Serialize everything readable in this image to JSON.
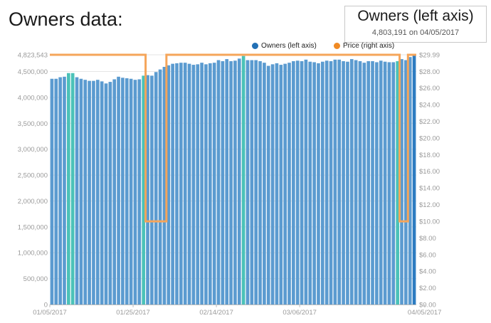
{
  "page": {
    "title": "Owners data:"
  },
  "tooltip": {
    "title": "Owners (left axis)",
    "value_text": "4,803,191 on 04/05/2017"
  },
  "colors": {
    "bar": "#5b9bd0",
    "bar_highlight": "#4bc2b8",
    "bar_last": "#2d7cc1",
    "price_line": "#f5a55a",
    "legend_owners": "#2270b5",
    "legend_price": "#f08a24",
    "grid": "#e6e6e6"
  },
  "chart_data": {
    "type": "bar",
    "legend": [
      {
        "name": "Owners (left axis)",
        "color": "#2270b5"
      },
      {
        "name": "Price (right axis)",
        "color": "#f08a24"
      }
    ],
    "left_axis": {
      "min": 0,
      "max": 4823543,
      "ticks": [
        {
          "value": 0,
          "label": "0"
        },
        {
          "value": 500000,
          "label": "500,000"
        },
        {
          "value": 1000000,
          "label": "1,000,000"
        },
        {
          "value": 1500000,
          "label": "1,500,000"
        },
        {
          "value": 2000000,
          "label": "2,000,000"
        },
        {
          "value": 2500000,
          "label": "2,500,000"
        },
        {
          "value": 3000000,
          "label": "3,000,000"
        },
        {
          "value": 3500000,
          "label": "3,500,000"
        },
        {
          "value": 4000000,
          "label": "4,000,000"
        },
        {
          "value": 4500000,
          "label": "4,500,000"
        },
        {
          "value": 4823543,
          "label": "4,823,543"
        }
      ]
    },
    "right_axis": {
      "min": 0,
      "max": 29.99,
      "ticks": [
        {
          "value": 0,
          "label": "$0.00"
        },
        {
          "value": 2,
          "label": "$2.00"
        },
        {
          "value": 4,
          "label": "$4.00"
        },
        {
          "value": 6,
          "label": "$6.00"
        },
        {
          "value": 8,
          "label": "$8.00"
        },
        {
          "value": 10,
          "label": "$10.00"
        },
        {
          "value": 12,
          "label": "$12.00"
        },
        {
          "value": 14,
          "label": "$14.00"
        },
        {
          "value": 16,
          "label": "$16.00"
        },
        {
          "value": 18,
          "label": "$18.00"
        },
        {
          "value": 20,
          "label": "$20.00"
        },
        {
          "value": 22,
          "label": "$22.00"
        },
        {
          "value": 24,
          "label": "$24.00"
        },
        {
          "value": 26,
          "label": "$26.00"
        },
        {
          "value": 28,
          "label": "$28.00"
        },
        {
          "value": 29.99,
          "label": "$29.99"
        }
      ]
    },
    "x_ticks": [
      {
        "index": 0,
        "label": "01/05/2017"
      },
      {
        "index": 20,
        "label": "01/25/2017"
      },
      {
        "index": 40,
        "label": "02/14/2017"
      },
      {
        "index": 60,
        "label": "03/06/2017"
      },
      {
        "index": 90,
        "label": "04/05/2017"
      }
    ],
    "owners": [
      4360000,
      4360000,
      4390000,
      4400000,
      4470000,
      4470000,
      4390000,
      4360000,
      4340000,
      4320000,
      4320000,
      4340000,
      4310000,
      4270000,
      4300000,
      4350000,
      4400000,
      4380000,
      4370000,
      4360000,
      4340000,
      4350000,
      4420000,
      4430000,
      4420000,
      4490000,
      4540000,
      4590000,
      4620000,
      4650000,
      4660000,
      4670000,
      4670000,
      4650000,
      4630000,
      4640000,
      4670000,
      4640000,
      4660000,
      4670000,
      4720000,
      4700000,
      4740000,
      4700000,
      4710000,
      4750000,
      4800000,
      4720000,
      4720000,
      4720000,
      4700000,
      4670000,
      4610000,
      4640000,
      4660000,
      4630000,
      4650000,
      4670000,
      4700000,
      4710000,
      4700000,
      4730000,
      4690000,
      4680000,
      4660000,
      4690000,
      4710000,
      4700000,
      4730000,
      4730000,
      4700000,
      4690000,
      4740000,
      4720000,
      4700000,
      4670000,
      4700000,
      4700000,
      4680000,
      4710000,
      4690000,
      4680000,
      4680000,
      4700000,
      4740000,
      4720000,
      4780000,
      4803191
    ],
    "highlight_indices": [
      4,
      5,
      22,
      46,
      83
    ],
    "last_index": 87,
    "price": [
      29.99,
      29.99,
      29.99,
      29.99,
      29.99,
      29.99,
      29.99,
      29.99,
      29.99,
      29.99,
      29.99,
      29.99,
      29.99,
      29.99,
      29.99,
      29.99,
      29.99,
      29.99,
      29.99,
      29.99,
      29.99,
      29.99,
      29.99,
      9.99,
      9.99,
      9.99,
      9.99,
      9.99,
      29.99,
      29.99,
      29.99,
      29.99,
      29.99,
      29.99,
      29.99,
      29.99,
      29.99,
      29.99,
      29.99,
      29.99,
      29.99,
      29.99,
      29.99,
      29.99,
      29.99,
      29.99,
      29.99,
      29.99,
      29.99,
      29.99,
      29.99,
      29.99,
      29.99,
      29.99,
      29.99,
      29.99,
      29.99,
      29.99,
      29.99,
      29.99,
      29.99,
      29.99,
      29.99,
      29.99,
      29.99,
      29.99,
      29.99,
      29.99,
      29.99,
      29.99,
      29.99,
      29.99,
      29.99,
      29.99,
      29.99,
      29.99,
      29.99,
      29.99,
      29.99,
      29.99,
      29.99,
      29.99,
      29.99,
      29.99,
      9.99,
      9.99,
      29.99,
      29.99
    ]
  }
}
